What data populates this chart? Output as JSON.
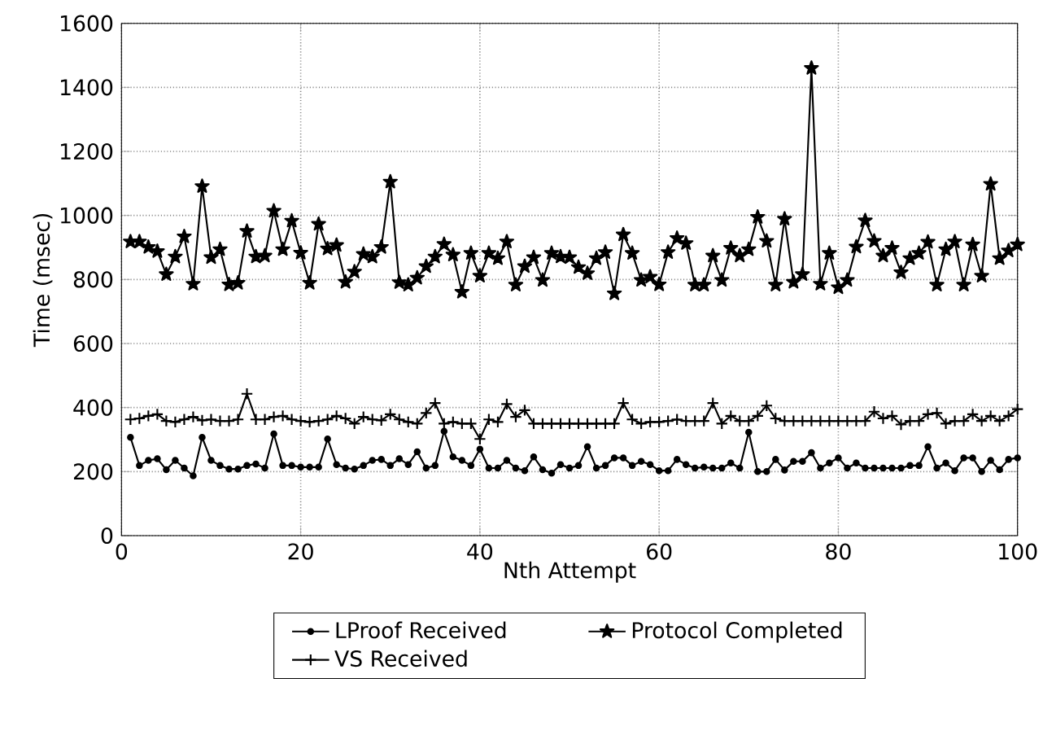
{
  "chart_data": {
    "type": "line",
    "xlabel": "Nth Attempt",
    "ylabel": "Time (msec)",
    "x": [
      1,
      2,
      3,
      4,
      5,
      6,
      7,
      8,
      9,
      10,
      11,
      12,
      13,
      14,
      15,
      16,
      17,
      18,
      19,
      20,
      21,
      22,
      23,
      24,
      25,
      26,
      27,
      28,
      29,
      30,
      31,
      32,
      33,
      34,
      35,
      36,
      37,
      38,
      39,
      40,
      41,
      42,
      43,
      44,
      45,
      46,
      47,
      48,
      49,
      50,
      51,
      52,
      53,
      54,
      55,
      56,
      57,
      58,
      59,
      60,
      61,
      62,
      63,
      64,
      65,
      66,
      67,
      68,
      69,
      70,
      71,
      72,
      73,
      74,
      75,
      76,
      77,
      78,
      79,
      80,
      81,
      82,
      83,
      84,
      85,
      86,
      87,
      88,
      89,
      90,
      91,
      92,
      93,
      94,
      95,
      96,
      97,
      98,
      99,
      100
    ],
    "xlim": [
      0,
      100
    ],
    "xticks": [
      0,
      20,
      40,
      60,
      80,
      100
    ],
    "ylim": [
      0,
      1600
    ],
    "yticks": [
      0,
      200,
      400,
      600,
      800,
      1000,
      1200,
      1400,
      1600
    ],
    "grid": true,
    "legend": "bottom",
    "line_style": "solid",
    "series": [
      {
        "name": "LProof Received",
        "color": "#000000",
        "marker": "circle",
        "values": [
          307,
          219,
          235,
          240,
          206,
          235,
          211,
          187,
          307,
          235,
          219,
          208,
          208,
          219,
          224,
          211,
          318,
          219,
          219,
          214,
          214,
          214,
          302,
          222,
          211,
          208,
          219,
          235,
          238,
          219,
          240,
          222,
          262,
          211,
          219,
          326,
          246,
          235,
          219,
          270,
          211,
          211,
          235,
          211,
          203,
          246,
          206,
          195,
          222,
          211,
          219,
          278,
          211,
          219,
          243,
          243,
          219,
          232,
          222,
          203,
          203,
          238,
          222,
          211,
          214,
          211,
          211,
          227,
          211,
          323,
          200,
          200,
          238,
          205,
          232,
          232,
          259,
          211,
          227,
          243,
          211,
          227,
          211,
          211,
          211,
          211,
          211,
          219,
          219,
          278,
          211,
          227,
          203,
          243,
          243,
          200,
          235,
          206,
          238,
          243
        ]
      },
      {
        "name": "Protocol Completed",
        "color": "#000000",
        "marker": "star",
        "values": [
          918,
          918,
          901,
          888,
          816,
          871,
          934,
          786,
          1091,
          869,
          894,
          784,
          789,
          951,
          871,
          874,
          1014,
          894,
          983,
          883,
          789,
          973,
          896,
          907,
          792,
          824,
          879,
          871,
          901,
          1105,
          791,
          783,
          805,
          841,
          871,
          910,
          877,
          761,
          882,
          811,
          882,
          866,
          918,
          783,
          841,
          869,
          798,
          882,
          871,
          869,
          838,
          819,
          866,
          885,
          756,
          940,
          882,
          798,
          808,
          784,
          885,
          929,
          913,
          783,
          783,
          874,
          798,
          898,
          874,
          894,
          995,
          920,
          783,
          989,
          792,
          816,
          1460,
          786,
          882,
          775,
          798,
          902,
          984,
          920,
          874,
          898,
          822,
          866,
          882,
          917,
          783,
          894,
          918,
          783,
          909,
          811,
          1098,
          866,
          890,
          909
        ]
      },
      {
        "name": "VS Received",
        "color": "#000000",
        "marker": "cross",
        "values": [
          363,
          366,
          374,
          379,
          358,
          355,
          363,
          371,
          360,
          363,
          358,
          358,
          363,
          443,
          363,
          363,
          371,
          374,
          363,
          358,
          355,
          358,
          363,
          374,
          366,
          350,
          371,
          363,
          360,
          379,
          363,
          355,
          350,
          383,
          414,
          350,
          355,
          350,
          350,
          302,
          363,
          355,
          411,
          371,
          392,
          350,
          350,
          350,
          350,
          350,
          350,
          350,
          350,
          350,
          350,
          414,
          363,
          350,
          355,
          355,
          358,
          363,
          358,
          358,
          358,
          414,
          350,
          374,
          358,
          358,
          374,
          406,
          366,
          358,
          358,
          358,
          358,
          358,
          358,
          358,
          358,
          358,
          358,
          387,
          366,
          374,
          347,
          358,
          358,
          379,
          383,
          350,
          358,
          358,
          379,
          358,
          374,
          358,
          374,
          395
        ]
      }
    ]
  }
}
